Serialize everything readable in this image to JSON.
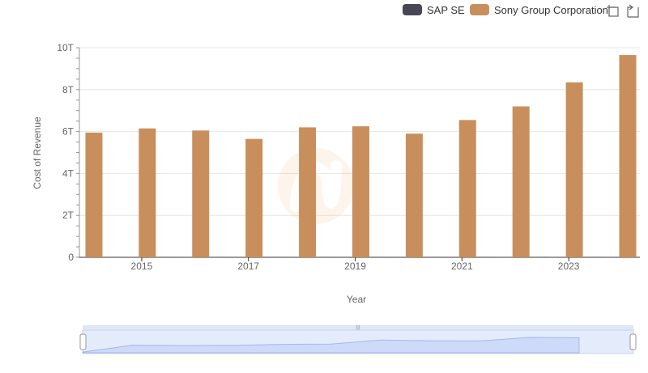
{
  "legend": {
    "items": [
      {
        "label": "SAP SE",
        "color": "#464655"
      },
      {
        "label": "Sony Group Corporation",
        "color": "#C88F5C"
      }
    ]
  },
  "toolbar": {
    "icons": [
      "zoom-icon",
      "restore-icon"
    ]
  },
  "chart_data": {
    "type": "bar",
    "title": "",
    "xlabel": "Year",
    "ylabel": "Cost of Revenue",
    "ylim": [
      0,
      10
    ],
    "y_unit_suffix": "T",
    "y_ticks": [
      0,
      2,
      4,
      6,
      8,
      10
    ],
    "y_tick_labels": [
      "0",
      "2T",
      "4T",
      "6T",
      "8T",
      "10T"
    ],
    "x_tick_labels": [
      "2015",
      "2017",
      "2019",
      "2021",
      "2023"
    ],
    "categories": [
      "2014",
      "2015",
      "2016",
      "2017",
      "2018",
      "2019",
      "2020",
      "2021",
      "2022",
      "2023",
      "2024"
    ],
    "series": [
      {
        "name": "SAP SE",
        "color": "#464655",
        "values": [
          0.006,
          0.007,
          0.007,
          0.008,
          0.008,
          0.009,
          0.009,
          0.009,
          0.01,
          0.01,
          0.01
        ]
      },
      {
        "name": "Sony Group Corporation",
        "color": "#C88F5C",
        "values": [
          5.95,
          6.15,
          6.05,
          5.65,
          6.2,
          6.25,
          5.9,
          6.55,
          7.2,
          8.35,
          9.65
        ]
      }
    ],
    "grid": true,
    "legend_position": "top-right"
  },
  "navigator": {
    "series_values": [
      0.0,
      0.45,
      0.42,
      0.43,
      0.5,
      0.52,
      0.78,
      0.73,
      0.72,
      0.95,
      0.92
    ]
  },
  "colors": {
    "grid": "#e6e6e6",
    "axis_text": "#666666",
    "nav_fill": "#d6e1fb",
    "nav_stroke": "#9fb3e8",
    "nav_handle_bar": "#dfe6f5"
  }
}
